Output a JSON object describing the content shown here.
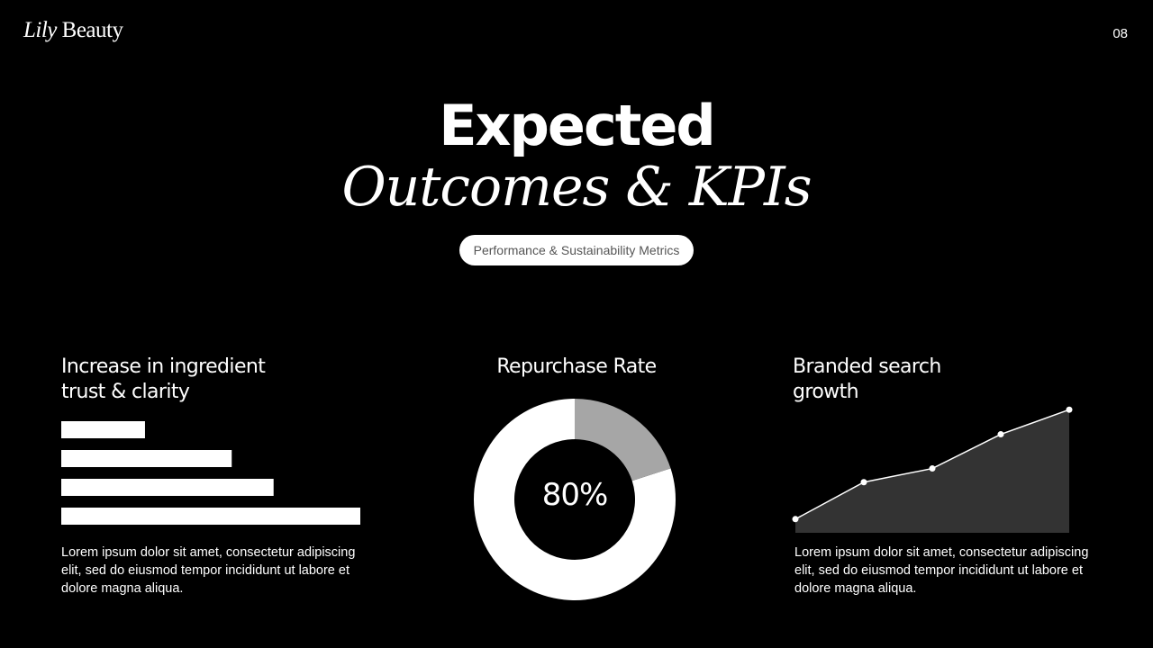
{
  "brand": {
    "word1": "Lily",
    "word2": "Beauty"
  },
  "page_number": "08",
  "title": {
    "line1": "Expected",
    "line2": "Outcomes & KPIs"
  },
  "subtitle_pill": "Performance & Sustainability Metrics",
  "colors": {
    "background": "#000000",
    "foreground": "#ffffff",
    "donut_remainder": "#a6a6a6",
    "area_fill": "#333333"
  },
  "kpis": {
    "ingredient_trust": {
      "title_line1": "Increase in ingredient",
      "title_line2": "trust & clarity",
      "description": "Lorem ipsum dolor sit amet, consectetur adipiscing elit, sed do eiusmod tempor incididunt ut labore et dolore magna aliqua."
    },
    "repurchase": {
      "title": "Repurchase Rate",
      "value_label": "80%"
    },
    "branded_search": {
      "title_line1": "Branded search",
      "title_line2": "growth",
      "description": "Lorem ipsum dolor sit amet, consectetur adipiscing elit, sed do eiusmod tempor incididunt ut labore et dolore magna aliqua."
    }
  },
  "chart_data": [
    {
      "type": "bar",
      "orientation": "horizontal",
      "values": [
        28,
        57,
        71,
        100
      ],
      "xlim": [
        0,
        100
      ],
      "grid": false
    },
    {
      "type": "pie",
      "donut": true,
      "slices": [
        80,
        20
      ],
      "center_label": "80%"
    },
    {
      "type": "area",
      "x": [
        1,
        2,
        3,
        4,
        5
      ],
      "values": [
        10,
        37,
        47,
        72,
        90
      ],
      "ylim": [
        0,
        100
      ],
      "markers": true,
      "grid": false
    }
  ]
}
